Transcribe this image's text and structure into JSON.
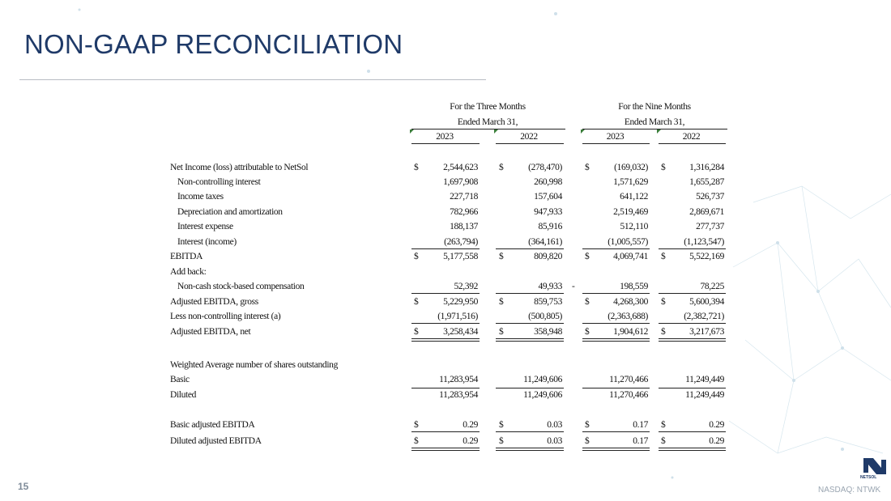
{
  "header": {
    "title": "NON-GAAP RECONCILIATION"
  },
  "table": {
    "column_groups": [
      {
        "line1": "For the Three Months",
        "line2": "Ended March 31,",
        "years": [
          "2023",
          "2022"
        ]
      },
      {
        "line1": "For the Nine Months",
        "line2": "Ended March 31,",
        "years": [
          "2023",
          "2022"
        ]
      }
    ],
    "rows": [
      {
        "label": "Net Income (loss) attributable to NetSol",
        "signs": [
          "$",
          "$",
          "$",
          "$"
        ],
        "values": [
          "2,544,623",
          "(278,470)",
          "(169,032)",
          "1,316,284"
        ]
      },
      {
        "label": "Non-controlling interest",
        "values": [
          "1,697,908",
          "260,998",
          "1,571,629",
          "1,655,287"
        ]
      },
      {
        "label": "Income taxes",
        "values": [
          "227,718",
          "157,604",
          "641,122",
          "526,737"
        ]
      },
      {
        "label": "Depreciation and amortization",
        "values": [
          "782,966",
          "947,933",
          "2,519,469",
          "2,869,671"
        ]
      },
      {
        "label": "Interest expense",
        "values": [
          "188,137",
          "85,916",
          "512,110",
          "277,737"
        ]
      },
      {
        "label": "Interest (income)",
        "values": [
          "(263,794)",
          "(364,161)",
          "(1,005,557)",
          "(1,123,547)"
        ]
      },
      {
        "label": "EBITDA",
        "signs": [
          "$",
          "$",
          "$",
          "$"
        ],
        "values": [
          "5,177,558",
          "809,820",
          "4,069,741",
          "5,522,169"
        ]
      },
      {
        "label": "Add back:"
      },
      {
        "label": "Non-cash stock-based compensation",
        "values": [
          "52,392",
          "49,933",
          "198,559",
          "78,225"
        ],
        "dash": "-"
      },
      {
        "label": "Adjusted EBITDA, gross",
        "signs": [
          "$",
          "$",
          "$",
          "$"
        ],
        "values": [
          "5,229,950",
          "859,753",
          "4,268,300",
          "5,600,394"
        ]
      },
      {
        "label": "Less non-controlling interest (a)",
        "values": [
          "(1,971,516)",
          "(500,805)",
          "(2,363,688)",
          "(2,382,721)"
        ]
      },
      {
        "label": "Adjusted EBITDA, net",
        "signs": [
          "$",
          "$",
          "$",
          "$"
        ],
        "values": [
          "3,258,434",
          "358,948",
          "1,904,612",
          "3,217,673"
        ]
      },
      {
        "label": "Weighted Average number of shares outstanding"
      },
      {
        "label": "Basic",
        "values": [
          "11,283,954",
          "11,249,606",
          "11,270,466",
          "11,249,449"
        ]
      },
      {
        "label": "Diluted",
        "values": [
          "11,283,954",
          "11,249,606",
          "11,270,466",
          "11,249,449"
        ]
      },
      {
        "label": "Basic adjusted EBITDA",
        "signs": [
          "$",
          "$",
          "$",
          "$"
        ],
        "values": [
          "0.29",
          "0.03",
          "0.17",
          "0.29"
        ]
      },
      {
        "label": "Diluted adjusted EBITDA",
        "signs": [
          "$",
          "$",
          "$",
          "$"
        ],
        "values": [
          "0.29",
          "0.03",
          "0.17",
          "0.29"
        ]
      }
    ]
  },
  "footer": {
    "page": "15",
    "exchange": "NASDAQ: NTWK",
    "logo": "NETSOL"
  }
}
